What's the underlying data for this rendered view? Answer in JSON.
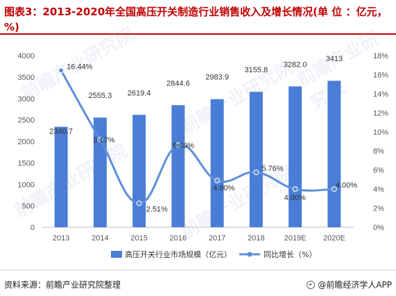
{
  "title": "图表3：2013-2020年全国高压开关制造行业销售收入及增长情况(单 位 ：亿元，%)",
  "source": "资料来源：前瞻产业研究院整理",
  "brand": "@前瞻经济学人APP",
  "watermark": "前瞻产业研究院",
  "colors": {
    "bar": "#4a7ed6",
    "line": "#5b8fd9",
    "title": "#c00000"
  },
  "chart_data": {
    "type": "bar",
    "categories": [
      "2013",
      "2014",
      "2015",
      "2016",
      "2017",
      "2018",
      "2019E",
      "2020E"
    ],
    "series": [
      {
        "name": "高压开关行业市场规模（亿元）",
        "type": "bar",
        "axis": "left",
        "values": [
          2340.7,
          2555.3,
          2619.4,
          2844.6,
          2983.9,
          3155.8,
          3282.0,
          3413
        ],
        "labels": [
          "2340.7",
          "2555.3",
          "2619.4",
          "2844.6",
          "2983.9",
          "3155.8",
          "3282.0",
          "3413"
        ]
      },
      {
        "name": "同比增长（%）",
        "type": "line",
        "axis": "right",
        "values": [
          16.44,
          9.17,
          2.51,
          8.6,
          4.9,
          5.76,
          4.0,
          4.0
        ],
        "labels": [
          "16.44%",
          "9.17%",
          "2.51%",
          "8.60%",
          "4.90%",
          "5.76%",
          "4.00%",
          "4.00%"
        ]
      }
    ],
    "y_left": {
      "min": 0,
      "max": 4000,
      "ticks": [
        "0",
        "500",
        "1000",
        "1500",
        "2000",
        "2500",
        "3000",
        "3500",
        "4000"
      ]
    },
    "y_right": {
      "min": 0,
      "max": 18,
      "ticks": [
        "0%",
        "2%",
        "4%",
        "6%",
        "8%",
        "10%",
        "12%",
        "14%",
        "16%",
        "18%"
      ]
    },
    "grid": false,
    "legend": "bottom"
  }
}
